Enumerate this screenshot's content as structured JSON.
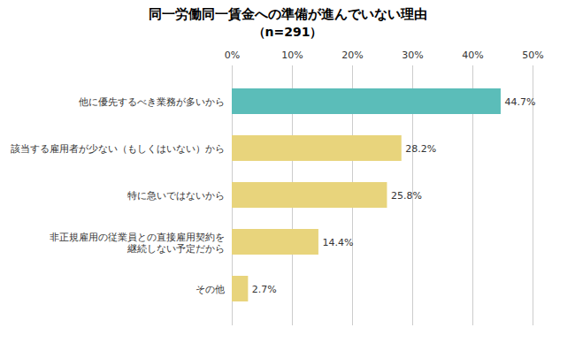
{
  "chart_data": {
    "type": "bar",
    "orientation": "horizontal",
    "title": "同一労働同一賃金への準備が進んでいない理由",
    "subtitle": "（n=291）",
    "categories": [
      "他に優先するべき業務が多いから",
      "該当する雇用者が少ない（もしくはいない）から",
      "特に急いではないから",
      "非正規雇用の従業員との直接雇用契約を\n継続しない予定だから",
      "その他"
    ],
    "values": [
      44.7,
      28.2,
      25.8,
      14.4,
      2.7
    ],
    "value_labels": [
      "44.7%",
      "28.2%",
      "25.8%",
      "14.4%",
      "2.7%"
    ],
    "colors": [
      "#5bbdb9",
      "#e8d47c",
      "#e8d47c",
      "#e8d47c",
      "#e8d47c"
    ],
    "xlim": [
      0,
      50
    ],
    "xticks": [
      {
        "value": 0,
        "label": "0%"
      },
      {
        "value": 10,
        "label": "10%"
      },
      {
        "value": 20,
        "label": "20%"
      },
      {
        "value": 30,
        "label": "30%"
      },
      {
        "value": 40,
        "label": "40%"
      },
      {
        "value": 50,
        "label": "50%"
      }
    ],
    "grid": true,
    "data_labels": true
  }
}
